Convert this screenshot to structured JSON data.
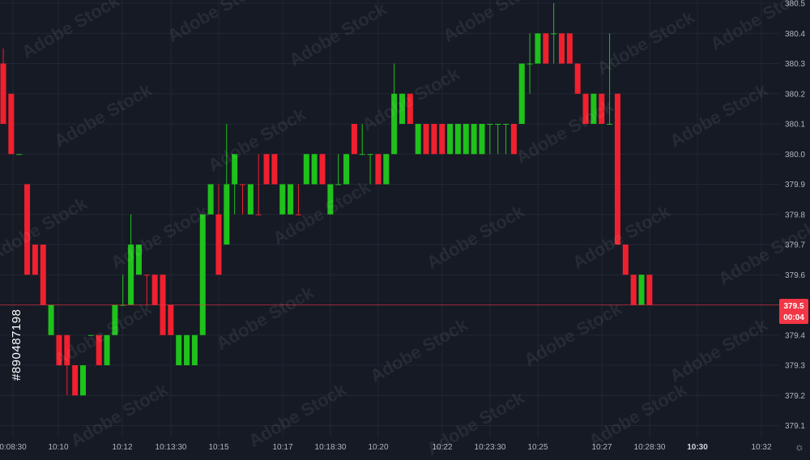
{
  "stock_id": "#890487198",
  "watermark_text": "Adobe Stock",
  "settings_icon": "gear-icon",
  "price_axis": {
    "ticks": [
      "380.5",
      "380.4",
      "380.3",
      "380.2",
      "380.1",
      "380.0",
      "379.9",
      "379.8",
      "379.7",
      "379.6",
      "379.4",
      "379.3",
      "379.2",
      "379.1"
    ]
  },
  "current_price": {
    "label": "379.5",
    "countdown": "00:04",
    "color": "#f23645"
  },
  "time_axis": {
    "labels": [
      {
        "text": "0:08:30",
        "bold": false
      },
      {
        "text": "10:10",
        "bold": false
      },
      {
        "text": "10:12",
        "bold": false
      },
      {
        "text": "10:13:30",
        "bold": false
      },
      {
        "text": "10:15",
        "bold": false
      },
      {
        "text": "10:17",
        "bold": false
      },
      {
        "text": "10:18:30",
        "bold": false
      },
      {
        "text": "10:20",
        "bold": false
      },
      {
        "text": "10:22",
        "bold": false
      },
      {
        "text": "10:23:30",
        "bold": false
      },
      {
        "text": "10:25",
        "bold": false
      },
      {
        "text": "10:27",
        "bold": false
      },
      {
        "text": "10:28:30",
        "bold": false
      },
      {
        "text": "10:30",
        "bold": true
      },
      {
        "text": "10:32",
        "bold": false
      }
    ]
  },
  "colors": {
    "up": "#1fc11b",
    "down": "#f0202e",
    "background": "#161a25",
    "grid": "#232735"
  },
  "chart_data": {
    "type": "candlestick",
    "ylim": [
      379.05,
      380.5
    ],
    "grid": true,
    "candles": [
      {
        "o": 380.3,
        "h": 380.35,
        "l": 380.1,
        "c": 380.1
      },
      {
        "o": 380.2,
        "h": 380.2,
        "l": 380.0,
        "c": 380.0
      },
      {
        "o": 380.0,
        "h": 380.0,
        "l": 380.0,
        "c": 380.0
      },
      {
        "o": 379.9,
        "h": 379.9,
        "l": 379.6,
        "c": 379.6
      },
      {
        "o": 379.7,
        "h": 379.7,
        "l": 379.6,
        "c": 379.6
      },
      {
        "o": 379.7,
        "h": 379.7,
        "l": 379.5,
        "c": 379.5
      },
      {
        "o": 379.4,
        "h": 379.5,
        "l": 379.4,
        "c": 379.5
      },
      {
        "o": 379.4,
        "h": 379.4,
        "l": 379.3,
        "c": 379.3
      },
      {
        "o": 379.4,
        "h": 379.4,
        "l": 379.2,
        "c": 379.3
      },
      {
        "o": 379.3,
        "h": 379.3,
        "l": 379.2,
        "c": 379.2
      },
      {
        "o": 379.2,
        "h": 379.3,
        "l": 379.2,
        "c": 379.3
      },
      {
        "o": 379.4,
        "h": 379.4,
        "l": 379.4,
        "c": 379.4
      },
      {
        "o": 379.4,
        "h": 379.4,
        "l": 379.3,
        "c": 379.3
      },
      {
        "o": 379.3,
        "h": 379.4,
        "l": 379.3,
        "c": 379.4
      },
      {
        "o": 379.4,
        "h": 379.5,
        "l": 379.4,
        "c": 379.5
      },
      {
        "o": 379.5,
        "h": 379.6,
        "l": 379.5,
        "c": 379.5
      },
      {
        "o": 379.5,
        "h": 379.8,
        "l": 379.5,
        "c": 379.7
      },
      {
        "o": 379.6,
        "h": 379.7,
        "l": 379.6,
        "c": 379.7
      },
      {
        "o": 379.6,
        "h": 379.6,
        "l": 379.5,
        "c": 379.6
      },
      {
        "o": 379.6,
        "h": 379.6,
        "l": 379.5,
        "c": 379.5
      },
      {
        "o": 379.6,
        "h": 379.6,
        "l": 379.4,
        "c": 379.4
      },
      {
        "o": 379.5,
        "h": 379.5,
        "l": 379.4,
        "c": 379.4
      },
      {
        "o": 379.3,
        "h": 379.4,
        "l": 379.3,
        "c": 379.4
      },
      {
        "o": 379.3,
        "h": 379.4,
        "l": 379.3,
        "c": 379.4
      },
      {
        "o": 379.3,
        "h": 379.4,
        "l": 379.3,
        "c": 379.4
      },
      {
        "o": 379.4,
        "h": 379.8,
        "l": 379.4,
        "c": 379.8
      },
      {
        "o": 379.8,
        "h": 379.9,
        "l": 379.8,
        "c": 379.9
      },
      {
        "o": 379.8,
        "h": 379.9,
        "l": 379.6,
        "c": 379.6
      },
      {
        "o": 379.7,
        "h": 380.1,
        "l": 379.7,
        "c": 379.9
      },
      {
        "o": 379.9,
        "h": 380.0,
        "l": 379.8,
        "c": 380.0
      },
      {
        "o": 379.9,
        "h": 379.9,
        "l": 379.8,
        "c": 379.9
      },
      {
        "o": 379.8,
        "h": 379.9,
        "l": 379.8,
        "c": 379.9
      },
      {
        "o": 379.8,
        "h": 380.0,
        "l": 379.8,
        "c": 379.8
      },
      {
        "o": 380.0,
        "h": 380.0,
        "l": 379.9,
        "c": 379.9
      },
      {
        "o": 380.0,
        "h": 380.0,
        "l": 379.9,
        "c": 379.9
      },
      {
        "o": 379.8,
        "h": 379.9,
        "l": 379.8,
        "c": 379.9
      },
      {
        "o": 379.8,
        "h": 379.9,
        "l": 379.8,
        "c": 379.9
      },
      {
        "o": 379.8,
        "h": 379.9,
        "l": 379.8,
        "c": 379.8
      },
      {
        "o": 379.9,
        "h": 380.0,
        "l": 379.9,
        "c": 380.0
      },
      {
        "o": 379.9,
        "h": 380.0,
        "l": 379.9,
        "c": 380.0
      },
      {
        "o": 380.0,
        "h": 380.0,
        "l": 379.9,
        "c": 379.9
      },
      {
        "o": 379.8,
        "h": 379.9,
        "l": 379.8,
        "c": 379.9
      },
      {
        "o": 379.9,
        "h": 380.0,
        "l": 379.9,
        "c": 379.9
      },
      {
        "o": 379.9,
        "h": 380.0,
        "l": 379.9,
        "c": 380.0
      },
      {
        "o": 380.1,
        "h": 380.1,
        "l": 380.0,
        "c": 380.0
      },
      {
        "o": 380.0,
        "h": 380.1,
        "l": 380.0,
        "c": 380.0
      },
      {
        "o": 380.0,
        "h": 380.0,
        "l": 379.9,
        "c": 380.0
      },
      {
        "o": 380.0,
        "h": 380.0,
        "l": 379.9,
        "c": 379.9
      },
      {
        "o": 379.9,
        "h": 380.0,
        "l": 379.9,
        "c": 380.0
      },
      {
        "o": 380.0,
        "h": 380.3,
        "l": 380.0,
        "c": 380.2
      },
      {
        "o": 380.1,
        "h": 380.2,
        "l": 380.1,
        "c": 380.2
      },
      {
        "o": 380.2,
        "h": 380.2,
        "l": 380.1,
        "c": 380.1
      },
      {
        "o": 380.0,
        "h": 380.1,
        "l": 380.0,
        "c": 380.1
      },
      {
        "o": 380.1,
        "h": 380.1,
        "l": 380.0,
        "c": 380.0
      },
      {
        "o": 380.1,
        "h": 380.1,
        "l": 380.0,
        "c": 380.0
      },
      {
        "o": 380.1,
        "h": 380.1,
        "l": 380.0,
        "c": 380.0
      },
      {
        "o": 380.0,
        "h": 380.1,
        "l": 380.0,
        "c": 380.1
      },
      {
        "o": 380.0,
        "h": 380.1,
        "l": 380.0,
        "c": 380.1
      },
      {
        "o": 380.0,
        "h": 380.1,
        "l": 380.0,
        "c": 380.1
      },
      {
        "o": 380.0,
        "h": 380.1,
        "l": 380.0,
        "c": 380.1
      },
      {
        "o": 380.0,
        "h": 380.1,
        "l": 380.0,
        "c": 380.1
      },
      {
        "o": 380.1,
        "h": 380.1,
        "l": 380.0,
        "c": 380.1
      },
      {
        "o": 380.1,
        "h": 380.1,
        "l": 380.0,
        "c": 380.1
      },
      {
        "o": 380.1,
        "h": 380.1,
        "l": 380.0,
        "c": 380.1
      },
      {
        "o": 380.1,
        "h": 380.1,
        "l": 380.0,
        "c": 380.0
      },
      {
        "o": 380.1,
        "h": 380.3,
        "l": 380.1,
        "c": 380.3
      },
      {
        "o": 380.3,
        "h": 380.4,
        "l": 380.2,
        "c": 380.3
      },
      {
        "o": 380.3,
        "h": 380.4,
        "l": 380.3,
        "c": 380.4
      },
      {
        "o": 380.4,
        "h": 380.4,
        "l": 380.3,
        "c": 380.3
      },
      {
        "o": 380.4,
        "h": 380.5,
        "l": 380.3,
        "c": 380.4
      },
      {
        "o": 380.4,
        "h": 380.4,
        "l": 380.3,
        "c": 380.3
      },
      {
        "o": 380.4,
        "h": 380.4,
        "l": 380.3,
        "c": 380.3
      },
      {
        "o": 380.3,
        "h": 380.3,
        "l": 380.2,
        "c": 380.2
      },
      {
        "o": 380.2,
        "h": 380.2,
        "l": 380.1,
        "c": 380.1
      },
      {
        "o": 380.1,
        "h": 380.2,
        "l": 380.1,
        "c": 380.2
      },
      {
        "o": 380.2,
        "h": 380.2,
        "l": 380.1,
        "c": 380.1
      },
      {
        "o": 380.1,
        "h": 380.4,
        "l": 380.1,
        "c": 380.1
      },
      {
        "o": 380.2,
        "h": 380.2,
        "l": 379.7,
        "c": 379.7
      },
      {
        "o": 379.7,
        "h": 379.7,
        "l": 379.6,
        "c": 379.6
      },
      {
        "o": 379.6,
        "h": 379.6,
        "l": 379.5,
        "c": 379.5
      },
      {
        "o": 379.5,
        "h": 379.6,
        "l": 379.5,
        "c": 379.6
      },
      {
        "o": 379.6,
        "h": 379.6,
        "l": 379.5,
        "c": 379.5
      }
    ]
  }
}
